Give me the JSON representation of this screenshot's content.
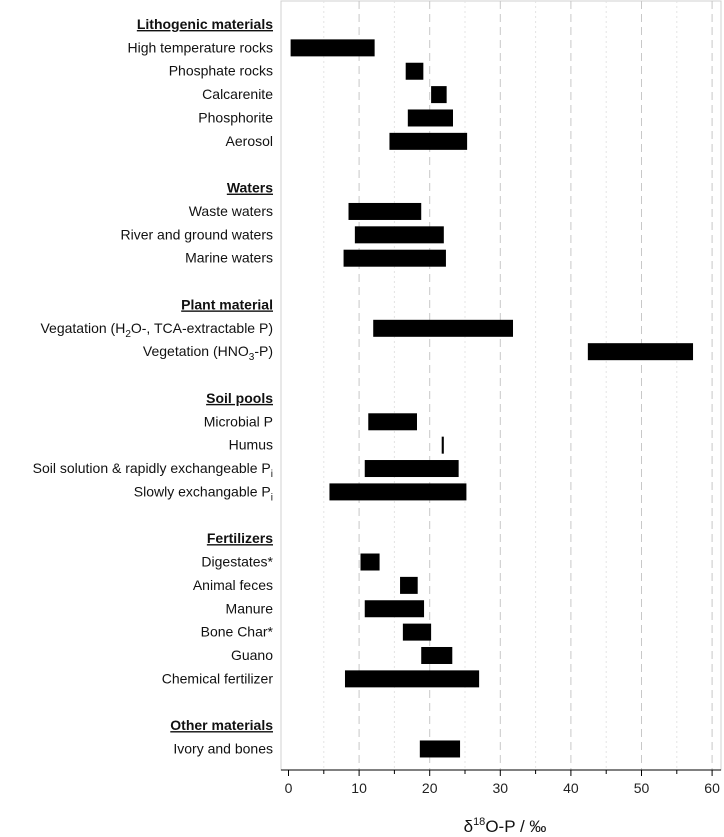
{
  "chart_data": {
    "type": "bar",
    "orientation": "horizontal-range",
    "xlabel": {
      "prefix": "δ",
      "sup": "18",
      "rest": "O-P / ‰"
    },
    "xlim": [
      -1,
      61.5
    ],
    "xticks": [
      0,
      10,
      20,
      30,
      40,
      50,
      60
    ],
    "grid": {
      "major": true,
      "minor": true
    },
    "colors": {
      "bar": "#000000",
      "grid_major": "#c8c8c8",
      "grid_minor": "#e4e4e4",
      "axis": "#000000"
    },
    "rows": [
      {
        "kind": "group",
        "label": "Lithogenic materials"
      },
      {
        "kind": "item",
        "label": "High temperature rocks",
        "min": 0.3,
        "max": 12.2
      },
      {
        "kind": "item",
        "label": "Phosphate rocks",
        "min": 16.6,
        "max": 19.1
      },
      {
        "kind": "item",
        "label": "Calcarenite",
        "min": 20.2,
        "max": 22.4
      },
      {
        "kind": "item",
        "label": "Phosphorite",
        "min": 16.9,
        "max": 23.3
      },
      {
        "kind": "item",
        "label": "Aerosol",
        "min": 14.3,
        "max": 25.3
      },
      {
        "kind": "spacer"
      },
      {
        "kind": "group",
        "label": "Waters"
      },
      {
        "kind": "item",
        "label": "Waste waters",
        "min": 8.5,
        "max": 18.8
      },
      {
        "kind": "item",
        "label": "River and ground waters",
        "min": 9.4,
        "max": 22.0
      },
      {
        "kind": "item",
        "label": "Marine waters",
        "min": 7.8,
        "max": 22.3
      },
      {
        "kind": "spacer"
      },
      {
        "kind": "group",
        "label": "Plant material"
      },
      {
        "kind": "item",
        "label": "Vegatation (H",
        "sub": "2",
        "labelEnd": "O-, TCA-extractable P)",
        "min": 12.0,
        "max": 31.8
      },
      {
        "kind": "item",
        "label": "Vegetation (HNO",
        "sub": "3",
        "labelEnd": "-P)",
        "min": 42.4,
        "max": 57.3
      },
      {
        "kind": "spacer"
      },
      {
        "kind": "group",
        "label": "Soil pools"
      },
      {
        "kind": "item",
        "label": "Microbial P",
        "min": 11.3,
        "max": 18.2
      },
      {
        "kind": "item",
        "label": "Humus",
        "min": 21.7,
        "max": 22.0
      },
      {
        "kind": "item",
        "label": "Soil solution & rapidly exchangeable P",
        "sub": "i",
        "labelEnd": "",
        "min": 10.8,
        "max": 24.1
      },
      {
        "kind": "item",
        "label": "Slowly exchangable P",
        "sub": "i",
        "labelEnd": "",
        "min": 5.8,
        "max": 25.2
      },
      {
        "kind": "spacer"
      },
      {
        "kind": "group",
        "label": "Fertilizers"
      },
      {
        "kind": "item",
        "label": "Digestates*",
        "min": 10.2,
        "max": 12.9
      },
      {
        "kind": "item",
        "label": "Animal feces",
        "min": 15.8,
        "max": 18.3
      },
      {
        "kind": "item",
        "label": "Manure",
        "min": 10.8,
        "max": 19.2
      },
      {
        "kind": "item",
        "label": "Bone Char*",
        "min": 16.2,
        "max": 20.2
      },
      {
        "kind": "item",
        "label": "Guano",
        "min": 18.8,
        "max": 23.2
      },
      {
        "kind": "item",
        "label": "Chemical fertilizer",
        "min": 8.0,
        "max": 27.0
      },
      {
        "kind": "spacer"
      },
      {
        "kind": "group",
        "label": "Other materials"
      },
      {
        "kind": "item",
        "label": "Ivory and bones",
        "min": 18.6,
        "max": 24.3
      }
    ]
  }
}
